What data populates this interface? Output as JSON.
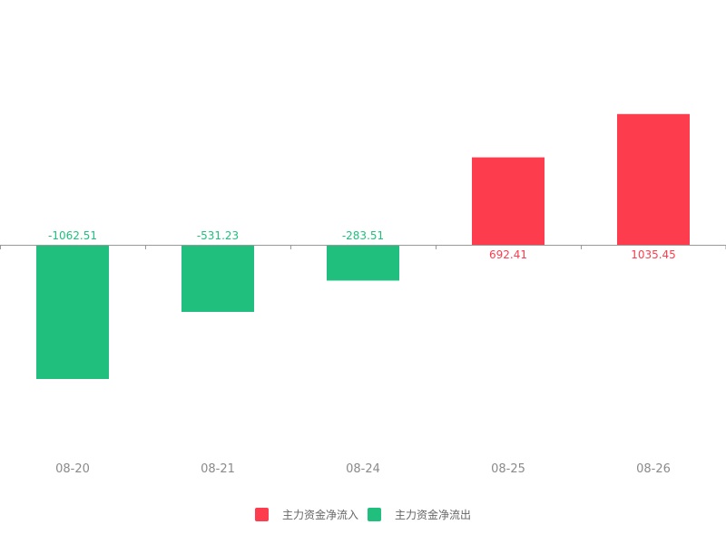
{
  "chart_data": {
    "type": "bar",
    "categories": [
      "08-20",
      "08-21",
      "08-24",
      "08-25",
      "08-26"
    ],
    "values": [
      -1062.51,
      -531.23,
      -283.51,
      692.41,
      1035.45
    ],
    "data_labels": [
      "-1062.51",
      "-531.23",
      "-283.51",
      "692.41",
      "1035.45"
    ],
    "title": "",
    "xlabel": "",
    "ylabel": "",
    "ylim": [
      -1662,
      1662
    ],
    "grid": false,
    "legend_position": "bottom-center",
    "legend": [
      {
        "label": "主力资金净流入",
        "color": "#fd3c4e"
      },
      {
        "label": "主力资金净流出",
        "color": "#20bf7e"
      }
    ],
    "colors": {
      "positive": "#fd3c4e",
      "negative": "#20bf7e",
      "axis": "#999999",
      "tick_label": "#8a8a8a"
    }
  }
}
